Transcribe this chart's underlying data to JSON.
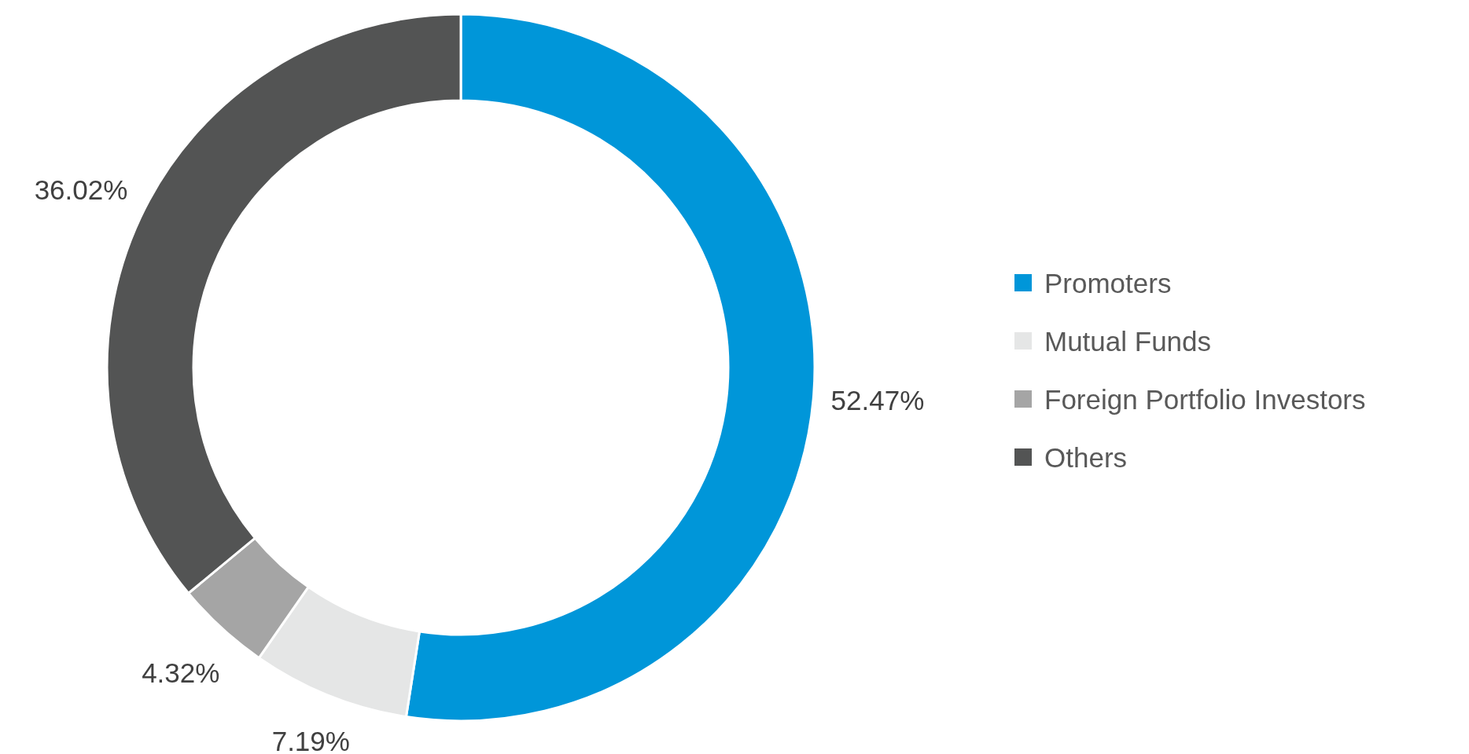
{
  "chart_data": {
    "type": "donut",
    "categories": [
      "Promoters",
      "Mutual Funds",
      "Foreign Portfolio Investors",
      "Others"
    ],
    "values": [
      52.47,
      7.19,
      4.32,
      36.02
    ],
    "colors": [
      "#0096d9",
      "#e5e6e6",
      "#a5a5a5",
      "#535454"
    ],
    "value_labels": [
      "52.47%",
      "7.19%",
      "4.32%",
      "36.02%"
    ],
    "legend": "right"
  }
}
